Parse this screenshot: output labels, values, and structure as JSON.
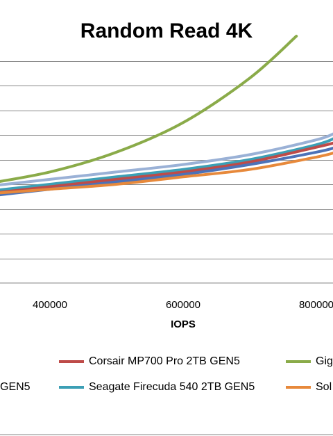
{
  "chart_data": {
    "type": "line",
    "title": "Random Read 4K",
    "xlabel": "IOPS",
    "ylabel": "",
    "x_ticks": [
      400000,
      600000,
      800000
    ],
    "x_visible_range": [
      300000,
      830000
    ],
    "ylim": [
      0,
      10
    ],
    "grid_y": [
      1,
      2,
      3,
      4,
      5,
      6,
      7,
      8,
      9
    ],
    "legend_position": "bottom",
    "series": [
      {
        "name": "Corsair MP700 Pro 2TB GEN5",
        "color": "#BE4B48",
        "x": [
          300000,
          400000,
          500000,
          600000,
          700000,
          800000,
          830000
        ],
        "y": [
          3.6,
          3.9,
          4.2,
          4.5,
          4.9,
          5.5,
          5.7
        ]
      },
      {
        "name": "Gig",
        "color": "#8AAB49",
        "x": [
          300000,
          400000,
          500000,
          600000,
          700000,
          770000
        ],
        "y": [
          4.0,
          4.5,
          5.3,
          6.5,
          8.3,
          10.0
        ]
      },
      {
        "name": "GEN5",
        "color": "#4C72B8",
        "x": [
          300000,
          400000,
          500000,
          600000,
          700000,
          800000,
          830000
        ],
        "y": [
          3.5,
          3.8,
          4.1,
          4.4,
          4.8,
          5.3,
          5.5
        ]
      },
      {
        "name": "Seagate Firecuda 540 2TB GEN5",
        "color": "#3C9FB5",
        "x": [
          300000,
          400000,
          500000,
          600000,
          700000,
          800000,
          830000
        ],
        "y": [
          3.7,
          4.0,
          4.3,
          4.6,
          5.0,
          5.6,
          5.9
        ]
      },
      {
        "name": "Sol",
        "color": "#E7893B",
        "x": [
          300000,
          400000,
          500000,
          600000,
          700000,
          800000,
          830000
        ],
        "y": [
          3.6,
          3.8,
          4.0,
          4.3,
          4.6,
          5.1,
          5.3
        ]
      },
      {
        "name": "",
        "color": "#9AB1D6",
        "x": [
          300000,
          400000,
          500000,
          600000,
          700000,
          800000,
          830000
        ],
        "y": [
          3.9,
          4.2,
          4.5,
          4.8,
          5.2,
          5.8,
          6.1
        ]
      }
    ],
    "legend": [
      {
        "label": "Corsair MP700 Pro 2TB GEN5",
        "color": "#BE4B48"
      },
      {
        "label": "Gig",
        "color": "#8AAB49"
      },
      {
        "label": "GEN5",
        "color": "#4C72B8"
      },
      {
        "label": "Seagate Firecuda 540 2TB GEN5",
        "color": "#3C9FB5"
      },
      {
        "label": "Sol",
        "color": "#E7893B"
      }
    ]
  }
}
